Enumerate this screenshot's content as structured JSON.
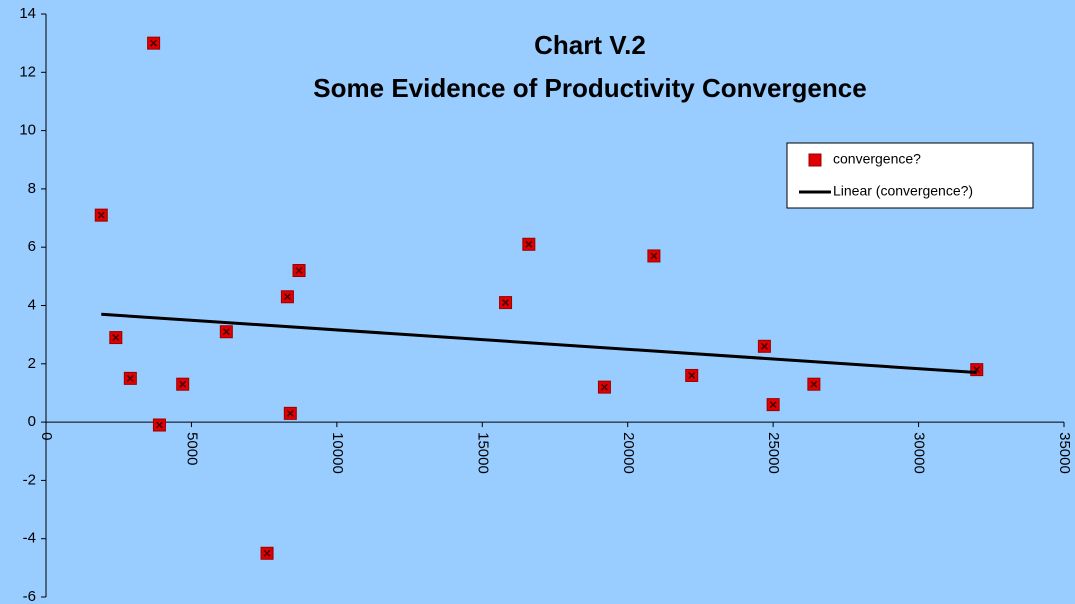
{
  "chart_data": {
    "type": "scatter",
    "title": "Chart V.2",
    "subtitle": "Some Evidence of Productivity Convergence",
    "series": [
      {
        "name": "convergence?",
        "color": "#e00000",
        "x": [
          1900,
          3700,
          2400,
          2900,
          3900,
          4700,
          6200,
          7600,
          8300,
          8400,
          8700,
          15800,
          16600,
          19200,
          20900,
          22200,
          24700,
          25000,
          26400,
          32000
        ],
        "values": [
          7.1,
          13.0,
          2.9,
          1.5,
          -0.1,
          1.3,
          3.1,
          -4.5,
          4.3,
          0.3,
          5.2,
          4.1,
          6.1,
          1.2,
          5.7,
          1.6,
          2.6,
          0.6,
          1.3,
          1.8
        ]
      },
      {
        "name": "Linear (convergence?)",
        "color": "#000000",
        "line": true,
        "x": [
          1900,
          32000
        ],
        "values": [
          3.7,
          1.7
        ]
      }
    ],
    "xlim": [
      0,
      35000
    ],
    "xticks": [
      0,
      5000,
      10000,
      15000,
      20000,
      25000,
      30000,
      35000
    ],
    "ylim": [
      -6,
      14
    ],
    "yticks": [
      -6,
      -4,
      -2,
      0,
      2,
      4,
      6,
      8,
      10,
      12,
      14
    ],
    "legend": "upper right"
  }
}
